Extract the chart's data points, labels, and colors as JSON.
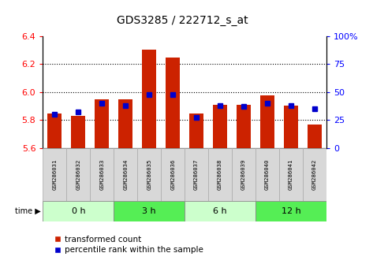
{
  "title": "GDS3285 / 222712_s_at",
  "samples": [
    "GSM286031",
    "GSM286032",
    "GSM286033",
    "GSM286034",
    "GSM286035",
    "GSM286036",
    "GSM286037",
    "GSM286038",
    "GSM286039",
    "GSM286040",
    "GSM286041",
    "GSM286042"
  ],
  "transformed_count": [
    5.845,
    5.83,
    5.95,
    5.95,
    6.305,
    6.245,
    5.845,
    5.91,
    5.91,
    5.975,
    5.905,
    5.77
  ],
  "percentile_rank": [
    30,
    32,
    40,
    38,
    48,
    48,
    27,
    38,
    37,
    40,
    38,
    35
  ],
  "groups": [
    {
      "label": "0 h",
      "start": 0,
      "end": 3,
      "color": "#ccffcc"
    },
    {
      "label": "3 h",
      "start": 3,
      "end": 6,
      "color": "#55ee55"
    },
    {
      "label": "6 h",
      "start": 6,
      "end": 9,
      "color": "#ccffcc"
    },
    {
      "label": "12 h",
      "start": 9,
      "end": 12,
      "color": "#55ee55"
    }
  ],
  "ylim_left": [
    5.6,
    6.4
  ],
  "ylim_right": [
    0,
    100
  ],
  "yticks_left": [
    5.6,
    5.8,
    6.0,
    6.2,
    6.4
  ],
  "yticks_right": [
    0,
    25,
    50,
    75,
    100
  ],
  "bar_color": "#cc2200",
  "dot_color": "#0000cc",
  "bar_width": 0.6,
  "base_value": 5.6,
  "legend_red": "transformed count",
  "legend_blue": "percentile rank within the sample",
  "grid_lines": [
    5.8,
    6.0,
    6.2
  ]
}
